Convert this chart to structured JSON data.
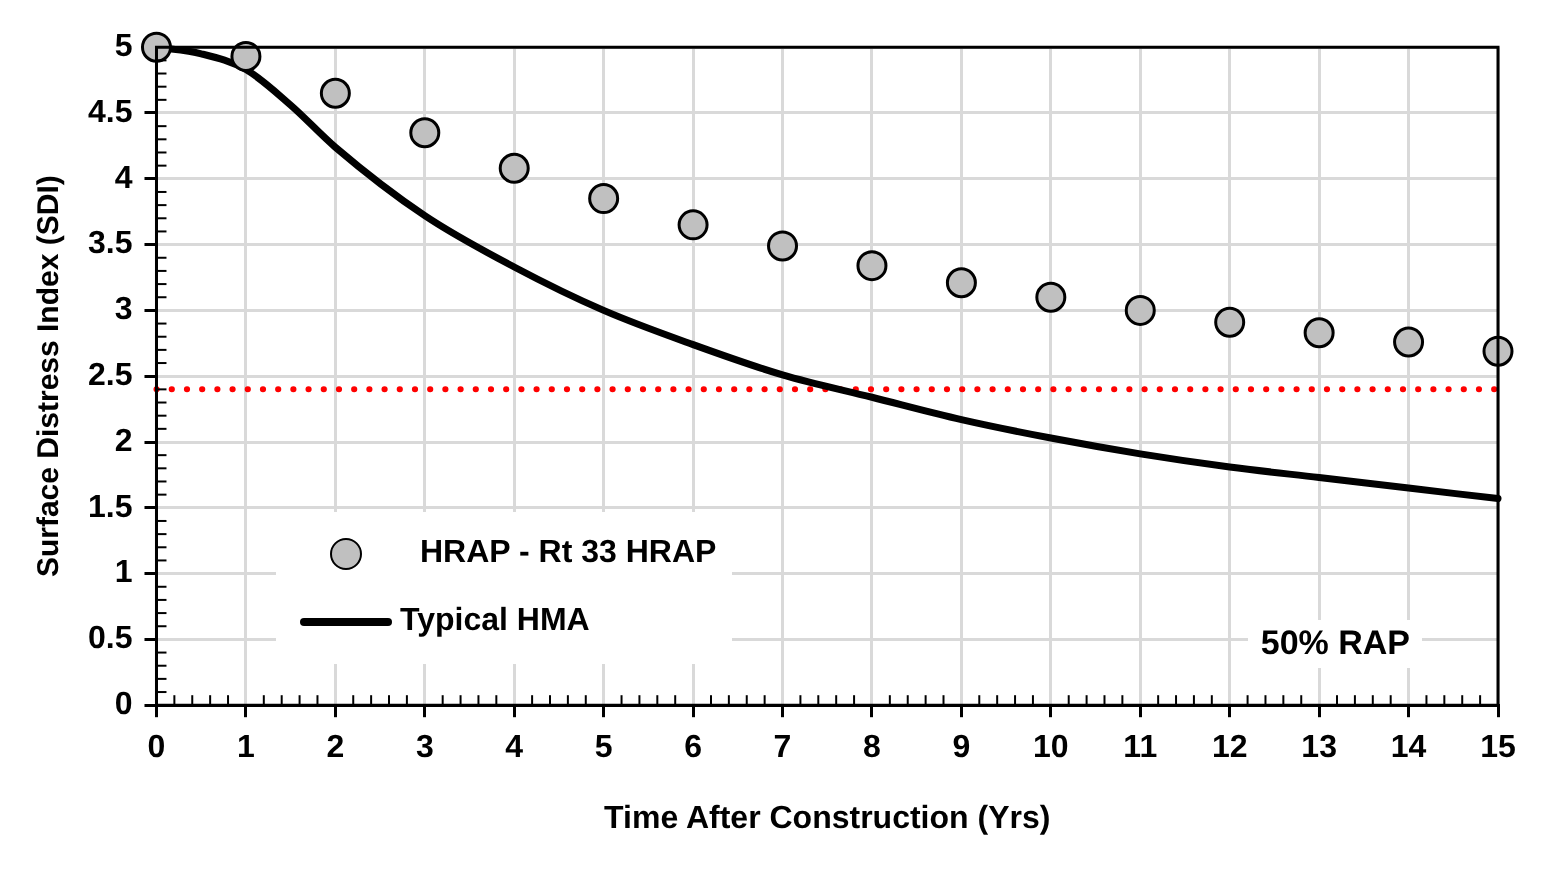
{
  "chart_data": {
    "type": "scatter",
    "xlabel": "Time After Construction (Yrs)",
    "ylabel": "Surface Distress Index (SDI)",
    "xlim": [
      0,
      15
    ],
    "xticks": [
      0,
      1,
      2,
      3,
      4,
      5,
      6,
      7,
      8,
      9,
      10,
      11,
      12,
      13,
      14,
      15
    ],
    "ylim": [
      0,
      5
    ],
    "yticks": [
      0,
      0.5,
      1,
      1.5,
      2,
      2.5,
      3,
      3.5,
      4,
      4.5,
      5
    ],
    "grid": true,
    "legend": "bottom left",
    "annotations": [
      "50% RAP"
    ],
    "ref_lines": [
      {
        "axis": "y",
        "value": 2.4,
        "color": "#ff0000",
        "line_style": "dotted"
      }
    ],
    "series": [
      {
        "name": "HRAP - Rt 33 HRAP",
        "marker": "circle",
        "color": "#c0c0c0",
        "x": [
          0,
          1,
          2,
          3,
          4,
          5,
          6,
          7,
          8,
          9,
          10,
          11,
          12,
          13,
          14,
          15
        ],
        "values": [
          5.0,
          4.93,
          4.65,
          4.35,
          4.08,
          3.85,
          3.65,
          3.49,
          3.34,
          3.21,
          3.1,
          3.0,
          2.91,
          2.83,
          2.76,
          2.69
        ]
      },
      {
        "name": "Typical HMA",
        "type": "line",
        "marker": "none",
        "line_style": "solid",
        "color": "#000000",
        "x": [
          0,
          0.5,
          1,
          1.5,
          2,
          3,
          4,
          5,
          6,
          7,
          8,
          9,
          10,
          11,
          12,
          13,
          14,
          15
        ],
        "values": [
          5.0,
          4.95,
          4.83,
          4.56,
          4.24,
          3.72,
          3.33,
          3.0,
          2.74,
          2.51,
          2.34,
          2.17,
          2.03,
          1.91,
          1.81,
          1.73,
          1.65,
          1.57
        ]
      }
    ]
  }
}
